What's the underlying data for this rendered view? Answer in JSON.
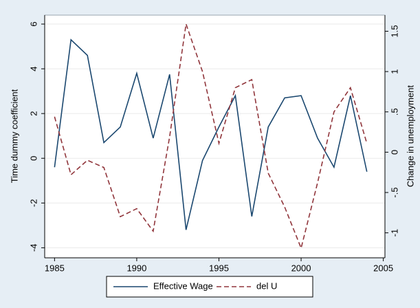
{
  "chart_data": {
    "type": "line",
    "x": [
      1985,
      1986,
      1987,
      1988,
      1989,
      1990,
      1991,
      1992,
      1993,
      1994,
      1995,
      1996,
      1997,
      1998,
      1999,
      2000,
      2001,
      2002,
      2003,
      2004
    ],
    "series": [
      {
        "name": "Effective Wage",
        "color": "#1a476f",
        "axis": "y",
        "dash": "solid",
        "values": [
          -0.4,
          5.3,
          4.6,
          0.7,
          1.4,
          3.8,
          0.9,
          3.75,
          -3.2,
          -0.1,
          1.4,
          2.8,
          -2.6,
          1.4,
          2.7,
          2.8,
          0.9,
          -0.4,
          2.8,
          -0.6
        ]
      },
      {
        "name": "del U",
        "color": "#90353b",
        "axis": "y2",
        "dash": "dashed",
        "values": [
          0.44,
          -0.28,
          -0.1,
          -0.19,
          -0.8,
          -0.7,
          -0.98,
          0.19,
          1.59,
          1.0,
          0.11,
          0.8,
          0.9,
          -0.26,
          -0.68,
          -1.19,
          -0.38,
          0.5,
          0.8,
          0.11
        ]
      }
    ],
    "y_label": "Time dummy coefficient",
    "y2_label": "Change in unemployment",
    "xlim": [
      1984.4,
      2005.1
    ],
    "xticks": [
      1985,
      1990,
      1995,
      2000,
      2005
    ],
    "ylim": [
      -4.45,
      6.4
    ],
    "yticks": [
      -4,
      -2,
      0,
      2,
      4,
      6
    ],
    "y2lim": [
      -1.31,
      1.7
    ],
    "y2ticks": [
      -1,
      {
        "value": -0.5,
        "label": "-.5"
      },
      0,
      {
        "value": 0.5,
        "label": ".5"
      },
      1,
      1.5
    ],
    "grid": true,
    "legend": "bottom"
  }
}
